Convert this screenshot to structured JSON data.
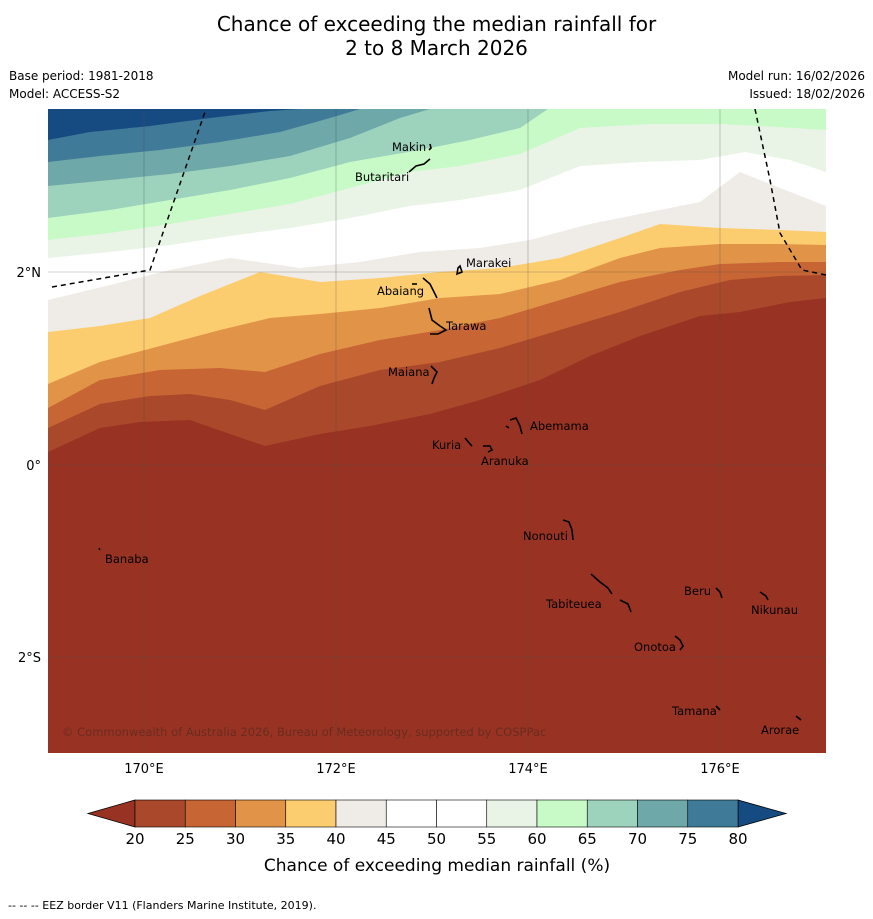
{
  "title": {
    "line1": "Chance of exceeding the median rainfall for",
    "line2": "2 to 8 March 2026"
  },
  "meta": {
    "base_period": "Base period: 1981-2018",
    "model": "Model: ACCESS-S2",
    "model_run": "Model run: 16/02/2026",
    "issued": "Issued: 18/02/2026"
  },
  "axes": {
    "lat_labels": [
      "2°N",
      "0°",
      "2°S"
    ],
    "lon_labels": [
      "170°E",
      "172°E",
      "174°E",
      "176°E"
    ]
  },
  "places": [
    {
      "name": "Makin"
    },
    {
      "name": "Butaritari"
    },
    {
      "name": "Marakei"
    },
    {
      "name": "Abaiang"
    },
    {
      "name": "Tarawa"
    },
    {
      "name": "Maiana"
    },
    {
      "name": "Abemama"
    },
    {
      "name": "Kuria"
    },
    {
      "name": "Aranuka"
    },
    {
      "name": "Nonouti"
    },
    {
      "name": "Banaba"
    },
    {
      "name": "Beru"
    },
    {
      "name": "Tabiteuea"
    },
    {
      "name": "Nikunau"
    },
    {
      "name": "Onotoa"
    },
    {
      "name": "Tamana"
    },
    {
      "name": "Arorae"
    }
  ],
  "copyright": "© Commonwealth of Australia 2026, Bureau of Meteorology, supported by COSPPac",
  "colorbar": {
    "ticks": [
      "20",
      "25",
      "30",
      "35",
      "40",
      "45",
      "50",
      "55",
      "60",
      "65",
      "70",
      "75",
      "80"
    ],
    "label": "Chance of exceeding median rainfall (%)",
    "colors": [
      "#a9482a",
      "#c76534",
      "#e19448",
      "#fccd6e",
      "#efebe6",
      "#ffffff",
      "#ffffff",
      "#e9f4e7",
      "#c8fac8",
      "#9dd3bd",
      "#6ea8a8",
      "#3f7a99"
    ],
    "under_color": "#983323",
    "over_color": "#164b81"
  },
  "footnote": "-- -- -- EEZ border V11 (Flanders Marine Institute, 2019)."
}
